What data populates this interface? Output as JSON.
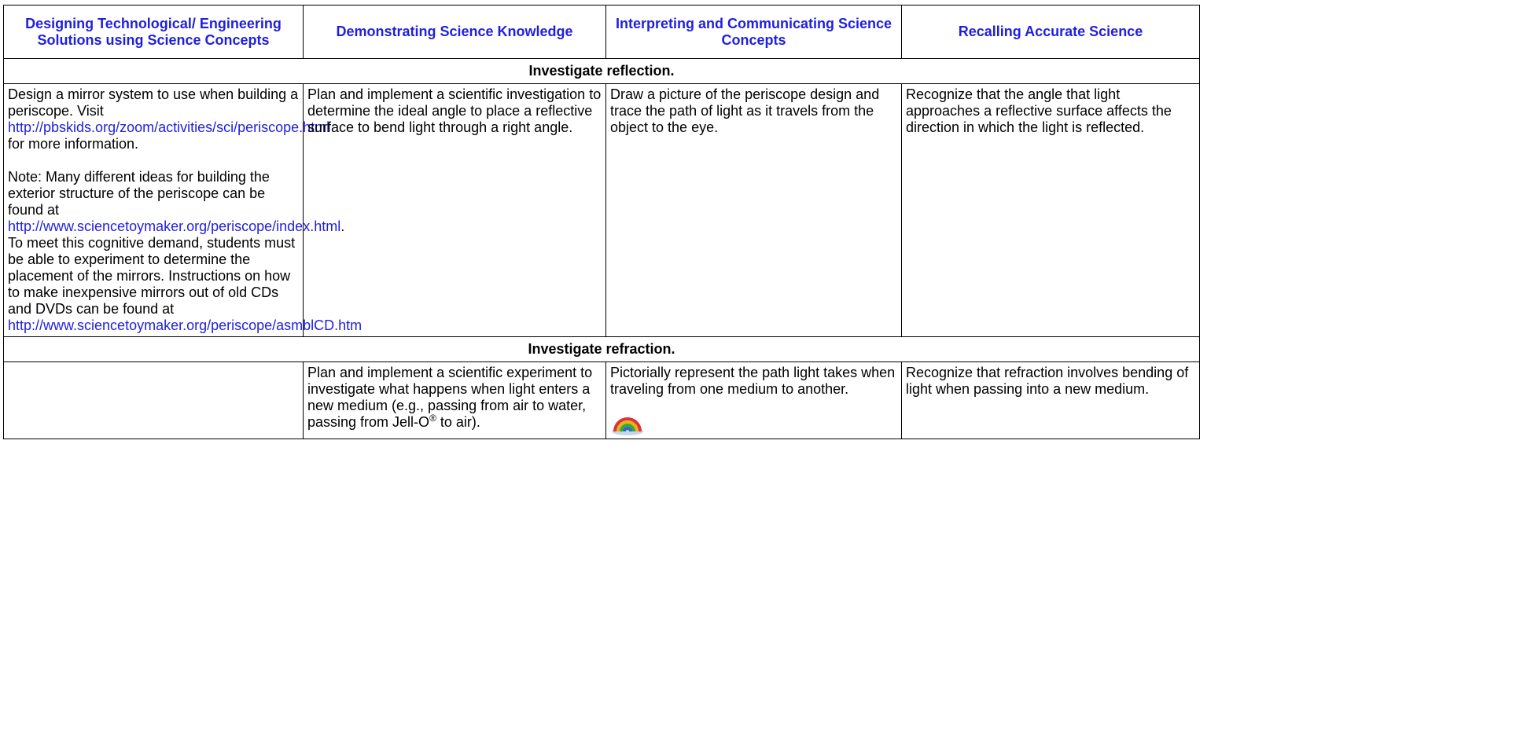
{
  "table": {
    "headers": [
      "Designing Technological/ Engineering Solutions using Science Concepts",
      "Demonstrating Science Knowledge",
      "Interpreting and Communicating Science Concepts",
      "Recalling Accurate Science"
    ],
    "sections": [
      {
        "title": "Investigate reflection.",
        "cells": [
          [
            [
              "Design a mirror system to use when building a periscope. Visit ",
              {
                "text": "http://pbskids.org/zoom/activities/sci/periscope.html",
                "link": true
              },
              " for more information."
            ],
            [
              "Note: Many different ideas for building the exterior structure of the periscope can be found at ",
              {
                "text": "http://www.sciencetoymaker.org/periscope/index.html",
                "link": true
              },
              ". To meet this cognitive demand, students must be able to experiment to determine the placement of the mirrors. Instructions on how to make inexpensive mirrors out of old CDs and DVDs can be found at ",
              {
                "text": "http://www.sciencetoymaker.org/periscope/asmblCD.htm",
                "link": true
              }
            ]
          ],
          [
            [
              "Plan and implement a scientific investigation to determine the ideal angle to place a reflective surface to bend light through a right angle."
            ]
          ],
          [
            [
              "Draw a picture of the periscope design and trace the path of light as it travels from the object to the eye."
            ]
          ],
          [
            [
              "Recognize that the angle that light approaches a reflective surface affects the direction in which the light is reflected."
            ]
          ]
        ]
      },
      {
        "title": "Investigate refraction.",
        "cells": [
          [],
          [
            [
              "Plan and implement a scientific experiment to investigate what happens when light enters a new medium (e.g., passing from air to water, passing from Jell-O",
              {
                "text": "®",
                "sup": true
              },
              " to air)."
            ]
          ],
          [
            [
              "Pictorially represent the path light takes when traveling from one medium to another."
            ]
          ],
          [
            [
              "Recognize that refraction involves bending of light when passing into a new medium."
            ]
          ]
        ]
      }
    ]
  }
}
